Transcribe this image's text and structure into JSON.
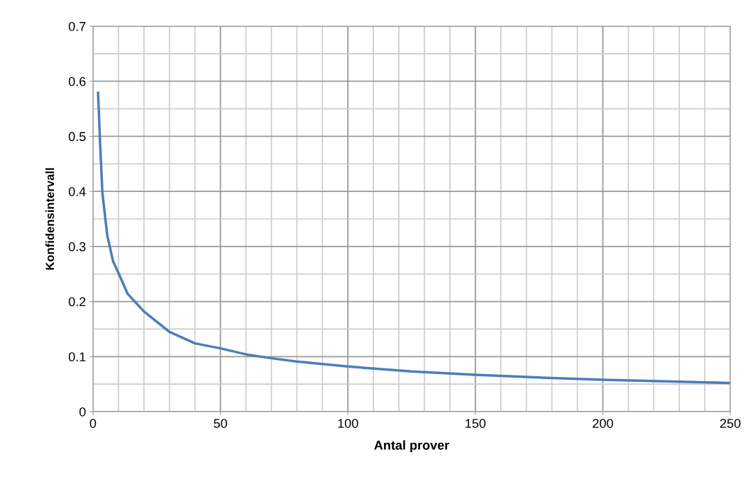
{
  "chart_data": {
    "type": "line",
    "xlabel": "Antal prover",
    "ylabel": "Konfidensintervall",
    "x": [
      2,
      2.8,
      3.7,
      5.6,
      7.9,
      10,
      13.6,
      20,
      30,
      40,
      50,
      60,
      70,
      80,
      100,
      125,
      150,
      175,
      200,
      225,
      250
    ],
    "series": [
      {
        "color": "#4a7ebb",
        "values": [
          0.579,
          0.487,
          0.397,
          0.32,
          0.273,
          0.252,
          0.214,
          0.182,
          0.145,
          0.124,
          0.115,
          0.104,
          0.097,
          0.091,
          0.082,
          0.073,
          0.067,
          0.062,
          0.058,
          0.055,
          0.052
        ]
      }
    ],
    "xlim": [
      0,
      250
    ],
    "xticks": [
      0,
      50,
      100,
      150,
      200,
      250
    ],
    "ylim": [
      0,
      0.7
    ],
    "yticks": [
      0,
      0.1,
      0.2,
      0.3,
      0.4,
      0.5,
      0.6,
      0.7
    ],
    "grid": true,
    "marker": "none",
    "line_style": "solid",
    "legend": false
  }
}
